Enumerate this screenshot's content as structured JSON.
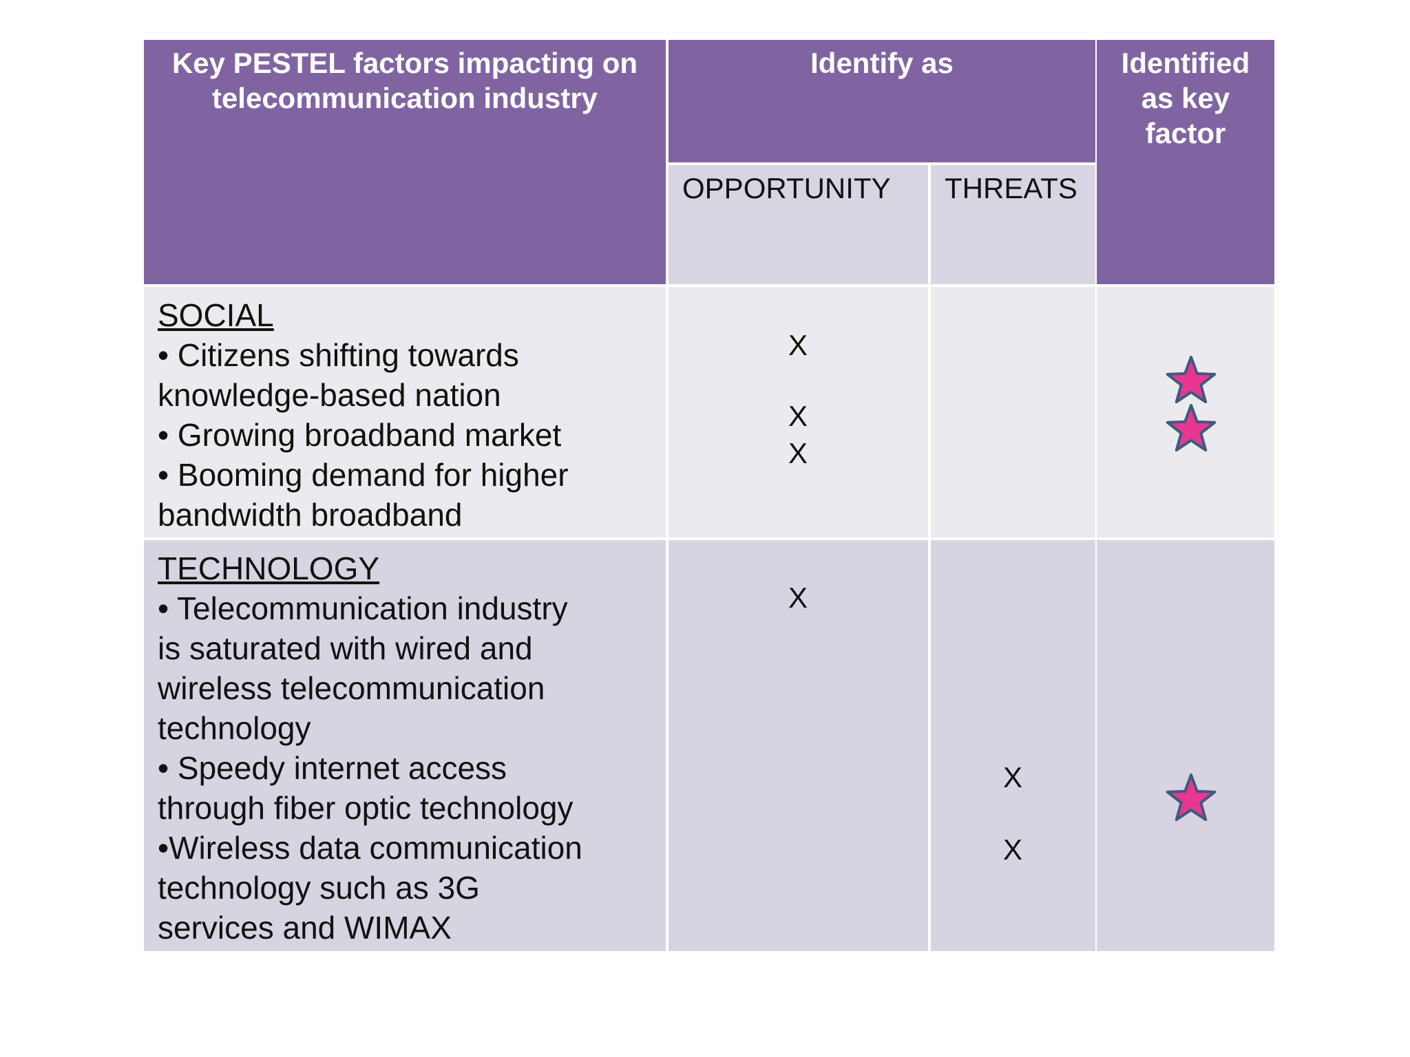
{
  "header": {
    "factor": [
      "Key PESTEL factors impacting on",
      "telecommunication industry"
    ],
    "identify": "Identify as",
    "opportunity": "OPPORTUNITY",
    "threats": "THREATS",
    "key": [
      "Identified",
      "as  key",
      "factor"
    ]
  },
  "rows": [
    {
      "category": "SOCIAL",
      "lines": [
        "• Citizens shifting towards",
        "knowledge-based nation",
        "• Growing broadband market",
        "• Booming demand for higher",
        "bandwidth broadband"
      ],
      "opportunity": [
        "X",
        "X",
        "X"
      ],
      "threats": []
    },
    {
      "category": "TECHNOLOGY",
      "lines": [
        "• Telecommunication industry",
        "is saturated with wired and",
        "wireless telecommunication",
        "technology",
        "•  Speedy internet access",
        "through fiber optic technology",
        "•Wireless data communication",
        "technology  such as 3G",
        "services and WIMAX"
      ],
      "opportunity": [
        "X"
      ],
      "threats": [
        "X",
        "X"
      ]
    }
  ]
}
